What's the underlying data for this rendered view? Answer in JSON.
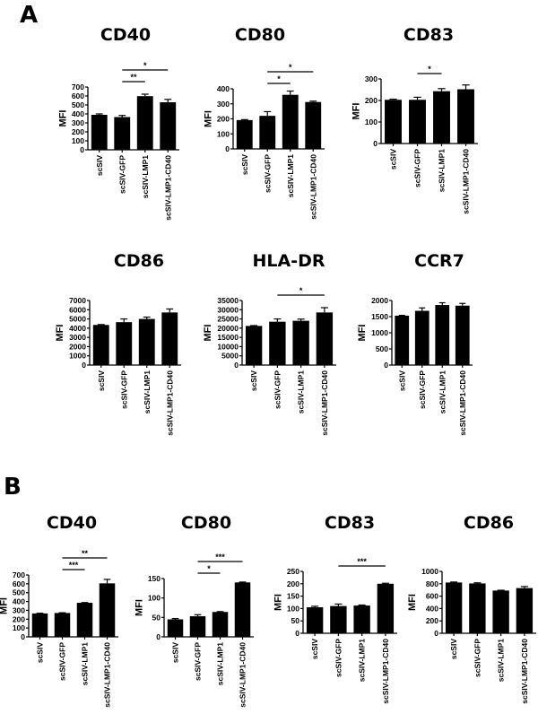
{
  "figure": {
    "panels": [
      {
        "label": "A"
      },
      {
        "label": "B"
      }
    ]
  },
  "chart_data": [
    {
      "panel": "A",
      "type": "bar",
      "title": "CD40",
      "ylabel": "MFI",
      "categories": [
        "scSIV",
        "scSIV-GFP",
        "scSIV-LMP1",
        "scSIV-LMP1-CD40"
      ],
      "values": [
        390,
        365,
        598,
        530
      ],
      "errors": [
        10,
        18,
        22,
        32
      ],
      "ylim": [
        0,
        700
      ],
      "yticks": [
        0,
        100,
        200,
        300,
        400,
        500,
        600,
        700
      ],
      "significance": [
        {
          "from": 1,
          "to": 2,
          "label": "**",
          "level": 0
        },
        {
          "from": 1,
          "to": 3,
          "label": "*",
          "level": 1
        }
      ]
    },
    {
      "panel": "A",
      "type": "bar",
      "title": "CD80",
      "ylabel": "MFI",
      "categories": [
        "scSIV",
        "scSIV-GFP",
        "scSIV-LMP1",
        "scSIV-LMP1-CD40"
      ],
      "values": [
        192,
        220,
        360,
        312
      ],
      "errors": [
        3,
        28,
        25,
        6
      ],
      "ylim": [
        0,
        400
      ],
      "yticks": [
        0,
        100,
        200,
        300,
        400
      ],
      "significance": [
        {
          "from": 1,
          "to": 2,
          "label": "*",
          "level": 0
        },
        {
          "from": 1,
          "to": 3,
          "label": "*",
          "level": 1
        }
      ]
    },
    {
      "panel": "A",
      "type": "bar",
      "title": "CD83",
      "ylabel": "MFI",
      "categories": [
        "scSIV",
        "scSIV-GFP",
        "scSIV-LMP1",
        "scSIV-LMP1-CD40"
      ],
      "values": [
        203,
        203,
        243,
        252
      ],
      "errors": [
        3,
        12,
        12,
        20
      ],
      "ylim": [
        0,
        300
      ],
      "yticks": [
        0,
        100,
        200,
        300
      ],
      "significance": [
        {
          "from": 1,
          "to": 2,
          "label": "*",
          "level": 0
        }
      ]
    },
    {
      "panel": "A",
      "type": "bar",
      "title": "CD86",
      "ylabel": "MFI",
      "categories": [
        "scSIV",
        "scSIV-GFP",
        "scSIV-LMP1",
        "scSIV-LMP1-CD40"
      ],
      "values": [
        4350,
        4650,
        5000,
        5700
      ],
      "errors": [
        40,
        350,
        200,
        380
      ],
      "ylim": [
        0,
        7000
      ],
      "yticks": [
        0,
        1000,
        2000,
        3000,
        4000,
        5000,
        6000,
        7000
      ],
      "significance": []
    },
    {
      "panel": "A",
      "type": "bar",
      "title": "HLA-DR",
      "ylabel": "MFI",
      "categories": [
        "scSIV",
        "scSIV-GFP",
        "scSIV-LMP1",
        "scSIV-LMP1-CD40"
      ],
      "values": [
        21200,
        23500,
        24000,
        28500
      ],
      "errors": [
        200,
        1500,
        900,
        2600
      ],
      "ylim": [
        0,
        35000
      ],
      "yticks": [
        0,
        5000,
        10000,
        15000,
        20000,
        25000,
        30000,
        35000
      ],
      "significance": [
        {
          "from": 1,
          "to": 3,
          "label": "*",
          "level": 0
        }
      ]
    },
    {
      "panel": "A",
      "type": "bar",
      "title": "CCR7",
      "ylabel": "MFI",
      "categories": [
        "scSIV",
        "scSIV-GFP",
        "scSIV-LMP1",
        "scSIV-LMP1-CD40"
      ],
      "values": [
        1530,
        1680,
        1860,
        1840
      ],
      "errors": [
        10,
        90,
        70,
        70
      ],
      "ylim": [
        0,
        2000
      ],
      "yticks": [
        0,
        500,
        1000,
        1500,
        2000
      ],
      "significance": []
    },
    {
      "panel": "B",
      "type": "bar",
      "title": "CD40",
      "ylabel": "MFI",
      "categories": [
        "scSIV",
        "scSIV-GFP",
        "scSIV-LMP1",
        "scSIV-LMP1-CD40"
      ],
      "values": [
        265,
        270,
        385,
        605
      ],
      "errors": [
        3,
        3,
        3,
        45
      ],
      "ylim": [
        0,
        700
      ],
      "yticks": [
        0,
        100,
        200,
        300,
        400,
        500,
        600,
        700
      ],
      "significance": [
        {
          "from": 1,
          "to": 2,
          "label": "***",
          "level": 0
        },
        {
          "from": 1,
          "to": 3,
          "label": "**",
          "level": 1
        }
      ]
    },
    {
      "panel": "B",
      "type": "bar",
      "title": "CD80",
      "ylabel": "MFI",
      "categories": [
        "scSIV",
        "scSIV-GFP",
        "scSIV-LMP1",
        "scSIV-LMP1-CD40"
      ],
      "values": [
        45,
        53,
        64,
        140
      ],
      "errors": [
        2,
        4,
        1,
        1
      ],
      "ylim": [
        0,
        150
      ],
      "yticks": [
        0,
        50,
        100,
        150
      ],
      "significance": [
        {
          "from": 1,
          "to": 2,
          "label": "*",
          "level": 0
        },
        {
          "from": 1,
          "to": 3,
          "label": "***",
          "level": 1
        }
      ]
    },
    {
      "panel": "B",
      "type": "bar",
      "title": "CD83",
      "ylabel": "MFI",
      "categories": [
        "scSIV",
        "scSIV-GFP",
        "scSIV-LMP1",
        "scSIV-LMP1-CD40"
      ],
      "values": [
        105,
        110,
        112,
        200
      ],
      "errors": [
        4,
        8,
        2,
        2
      ],
      "ylim": [
        0,
        250
      ],
      "yticks": [
        0,
        50,
        100,
        150,
        200,
        250
      ],
      "significance": [
        {
          "from": 1,
          "to": 3,
          "label": "***",
          "level": 0
        }
      ]
    },
    {
      "panel": "B",
      "type": "bar",
      "title": "CD86",
      "ylabel": "MFI",
      "categories": [
        "scSIV",
        "scSIV-GFP",
        "scSIV-LMP1",
        "scSIV-LMP1-CD40"
      ],
      "values": [
        820,
        805,
        690,
        730
      ],
      "errors": [
        8,
        10,
        5,
        25
      ],
      "ylim": [
        0,
        1000
      ],
      "yticks": [
        0,
        200,
        400,
        600,
        800,
        1000
      ],
      "significance": []
    }
  ]
}
